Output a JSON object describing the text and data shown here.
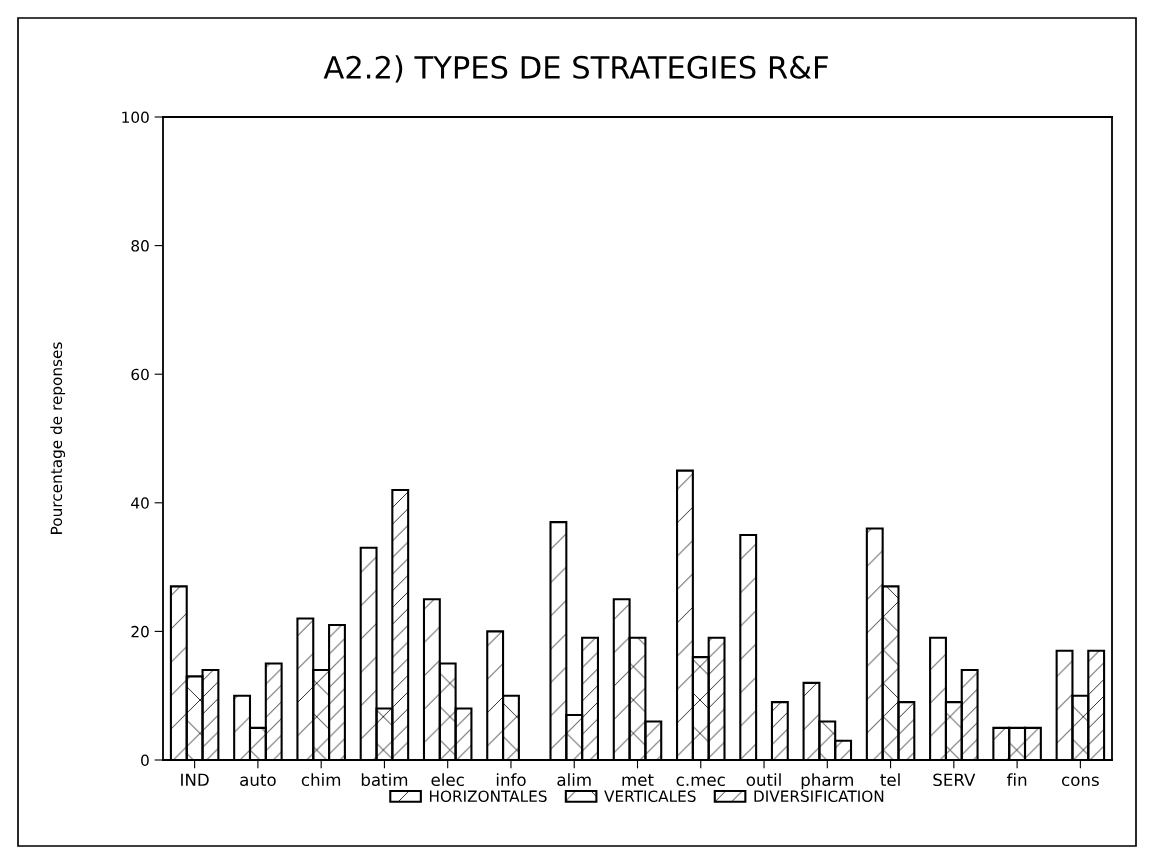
{
  "chart_data": {
    "type": "bar",
    "title": "A2.2) TYPES DE STRATEGIES R&F",
    "ylabel": "Pourcentage de reponses",
    "categories": [
      "IND",
      "auto",
      "chim",
      "batim",
      "elec",
      "info",
      "alim",
      "met",
      "c.mec",
      "outil",
      "pharm",
      "tel",
      "SERV",
      "fin",
      "cons"
    ],
    "series": [
      {
        "name": "HORIZONTALES",
        "color": "#000000",
        "values": [
          27,
          10,
          22,
          33,
          25,
          20,
          37,
          25,
          45,
          35,
          12,
          36,
          19,
          5,
          17
        ]
      },
      {
        "name": "VERTICALES",
        "color": "#000000",
        "values": [
          13,
          5,
          14,
          8,
          15,
          10,
          7,
          19,
          16,
          0,
          6,
          27,
          9,
          5,
          10
        ]
      },
      {
        "name": "DIVERSIFICATION",
        "color": "#000000",
        "values": [
          14,
          15,
          21,
          42,
          8,
          0,
          19,
          6,
          19,
          9,
          3,
          9,
          14,
          5,
          17
        ]
      }
    ],
    "ylim": [
      0,
      100
    ],
    "yticks": [
      0,
      20,
      40,
      60,
      80,
      100
    ],
    "grid": false,
    "legend": "bottom"
  }
}
